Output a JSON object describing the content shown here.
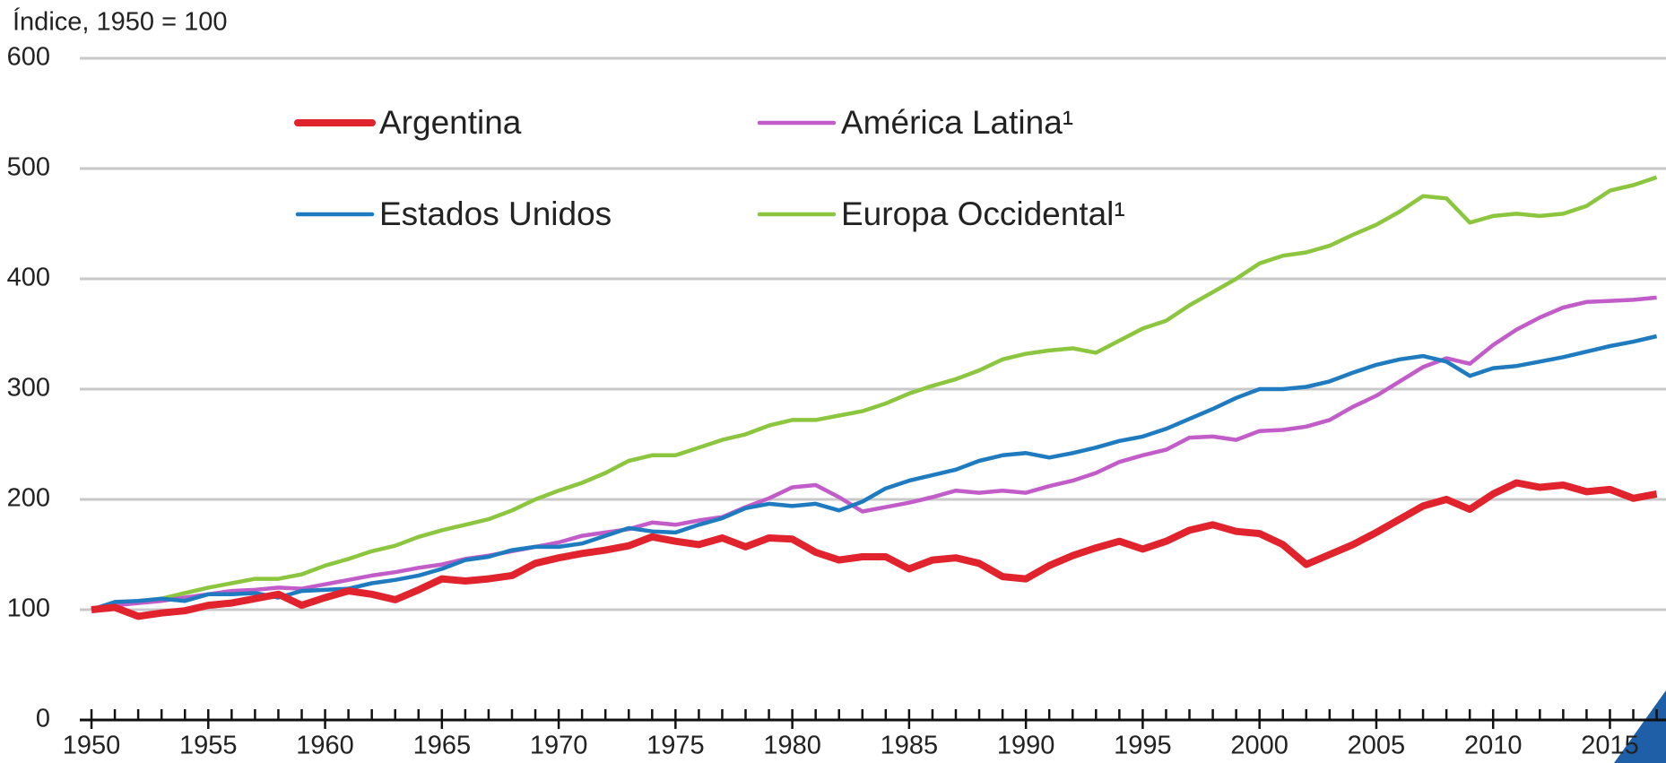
{
  "chart_data": {
    "type": "line",
    "y_axis_label": "Índice, 1950 = 100",
    "x": [
      1950,
      1951,
      1952,
      1953,
      1954,
      1955,
      1956,
      1957,
      1958,
      1959,
      1960,
      1961,
      1962,
      1963,
      1964,
      1965,
      1966,
      1967,
      1968,
      1969,
      1970,
      1971,
      1972,
      1973,
      1974,
      1975,
      1976,
      1977,
      1978,
      1979,
      1980,
      1981,
      1982,
      1983,
      1984,
      1985,
      1986,
      1987,
      1988,
      1989,
      1990,
      1991,
      1992,
      1993,
      1994,
      1995,
      1996,
      1997,
      1998,
      1999,
      2000,
      2001,
      2002,
      2003,
      2004,
      2005,
      2006,
      2007,
      2008,
      2009,
      2010,
      2011,
      2012,
      2013,
      2014,
      2015,
      2016,
      2017
    ],
    "series": [
      {
        "name": "Argentina",
        "color": "#e0232d",
        "values": [
          100,
          102,
          94,
          97,
          99,
          104,
          106,
          110,
          114,
          104,
          111,
          117,
          114,
          109,
          118,
          128,
          126,
          128,
          131,
          142,
          147,
          151,
          154,
          158,
          166,
          162,
          159,
          165,
          157,
          165,
          164,
          152,
          145,
          148,
          148,
          137,
          145,
          147,
          142,
          130,
          128,
          140,
          149,
          156,
          162,
          155,
          162,
          172,
          177,
          171,
          169,
          159,
          141,
          150,
          159,
          170,
          182,
          194,
          200,
          191,
          205,
          215,
          211,
          213,
          207,
          209,
          201,
          205
        ]
      },
      {
        "name": "América Latina¹",
        "color": "#c15cc9",
        "values": [
          100,
          104,
          106,
          108,
          111,
          114,
          117,
          118,
          120,
          119,
          123,
          127,
          131,
          134,
          138,
          141,
          146,
          149,
          153,
          157,
          161,
          167,
          170,
          173,
          179,
          177,
          181,
          184,
          193,
          201,
          211,
          213,
          202,
          189,
          193,
          197,
          202,
          208,
          206,
          208,
          206,
          212,
          217,
          224,
          234,
          240,
          245,
          256,
          257,
          254,
          262,
          263,
          266,
          272,
          284,
          294,
          307,
          320,
          328,
          323,
          340,
          354,
          365,
          374,
          379,
          380,
          381,
          383
        ]
      },
      {
        "name": "Estados Unidos",
        "color": "#1f7bc0",
        "values": [
          100,
          107,
          108,
          110,
          108,
          114,
          114,
          115,
          111,
          117,
          118,
          119,
          124,
          127,
          131,
          137,
          145,
          148,
          154,
          157,
          157,
          160,
          167,
          174,
          171,
          170,
          177,
          183,
          192,
          196,
          194,
          196,
          190,
          198,
          210,
          217,
          222,
          227,
          235,
          240,
          242,
          238,
          242,
          247,
          253,
          257,
          264,
          273,
          282,
          292,
          300,
          300,
          302,
          307,
          315,
          322,
          327,
          330,
          325,
          312,
          319,
          321,
          325,
          329,
          334,
          339,
          343,
          348
        ]
      },
      {
        "name": "Europa Occidental¹",
        "color": "#8cc63f",
        "values": [
          100,
          104,
          107,
          110,
          115,
          120,
          124,
          128,
          128,
          132,
          140,
          146,
          153,
          158,
          166,
          172,
          177,
          182,
          190,
          200,
          208,
          215,
          224,
          235,
          240,
          240,
          247,
          254,
          259,
          267,
          272,
          272,
          276,
          280,
          287,
          296,
          303,
          309,
          317,
          327,
          332,
          335,
          337,
          333,
          344,
          355,
          362,
          376,
          388,
          400,
          414,
          421,
          424,
          430,
          440,
          449,
          461,
          475,
          473,
          451,
          457,
          459,
          457,
          459,
          466,
          480,
          485,
          492
        ]
      }
    ],
    "xlim": [
      1949.5,
      2017.4
    ],
    "xticks": [
      1950,
      1955,
      1960,
      1965,
      1970,
      1975,
      1980,
      1985,
      1990,
      1995,
      2000,
      2005,
      2010,
      2015
    ],
    "ylim": [
      0,
      600
    ],
    "yticks": [
      0,
      100,
      200,
      300,
      400,
      500,
      600
    ],
    "grid": true
  }
}
